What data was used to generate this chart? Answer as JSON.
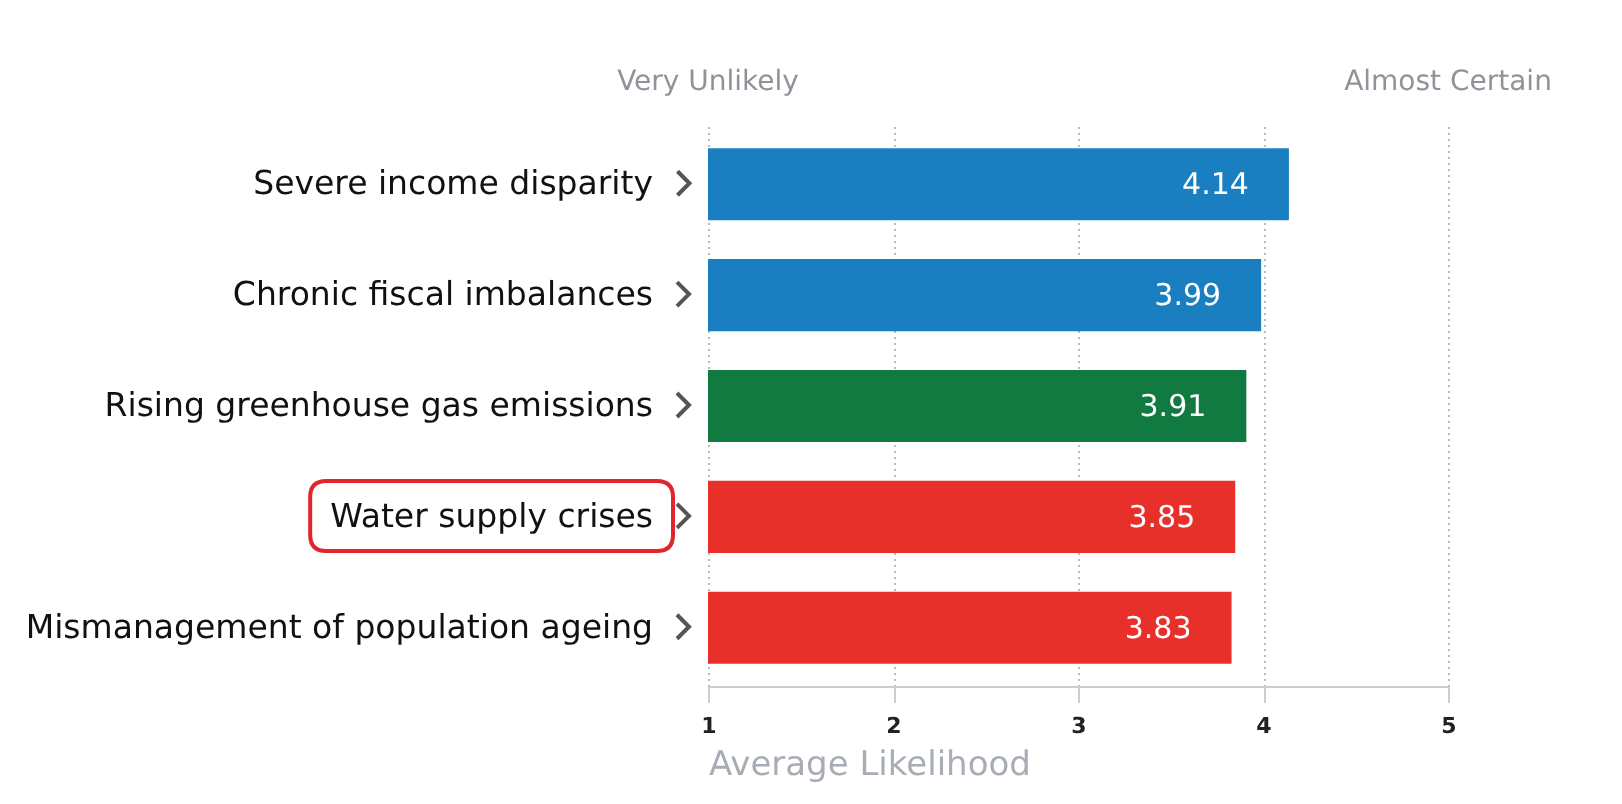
{
  "chart_data": {
    "type": "bar",
    "orientation": "horizontal",
    "categories": [
      "Severe income disparity",
      "Chronic fiscal imbalances",
      "Rising greenhouse gas emissions",
      "Water supply crises",
      "Mismanagement of population ageing"
    ],
    "values": [
      4.14,
      3.99,
      3.91,
      3.85,
      3.83
    ],
    "colors": [
      "#1a7fc1",
      "#1a7fc1",
      "#117a41",
      "#e8302a",
      "#e8302a"
    ],
    "xlim": [
      1,
      5
    ],
    "xticks": [
      1,
      2,
      3,
      4,
      5
    ],
    "xlabel": "Average Likelihood",
    "grid": "x",
    "data_labels": true,
    "annotations": [
      "Very Unlikely",
      "Almost Certain"
    ]
  }
}
